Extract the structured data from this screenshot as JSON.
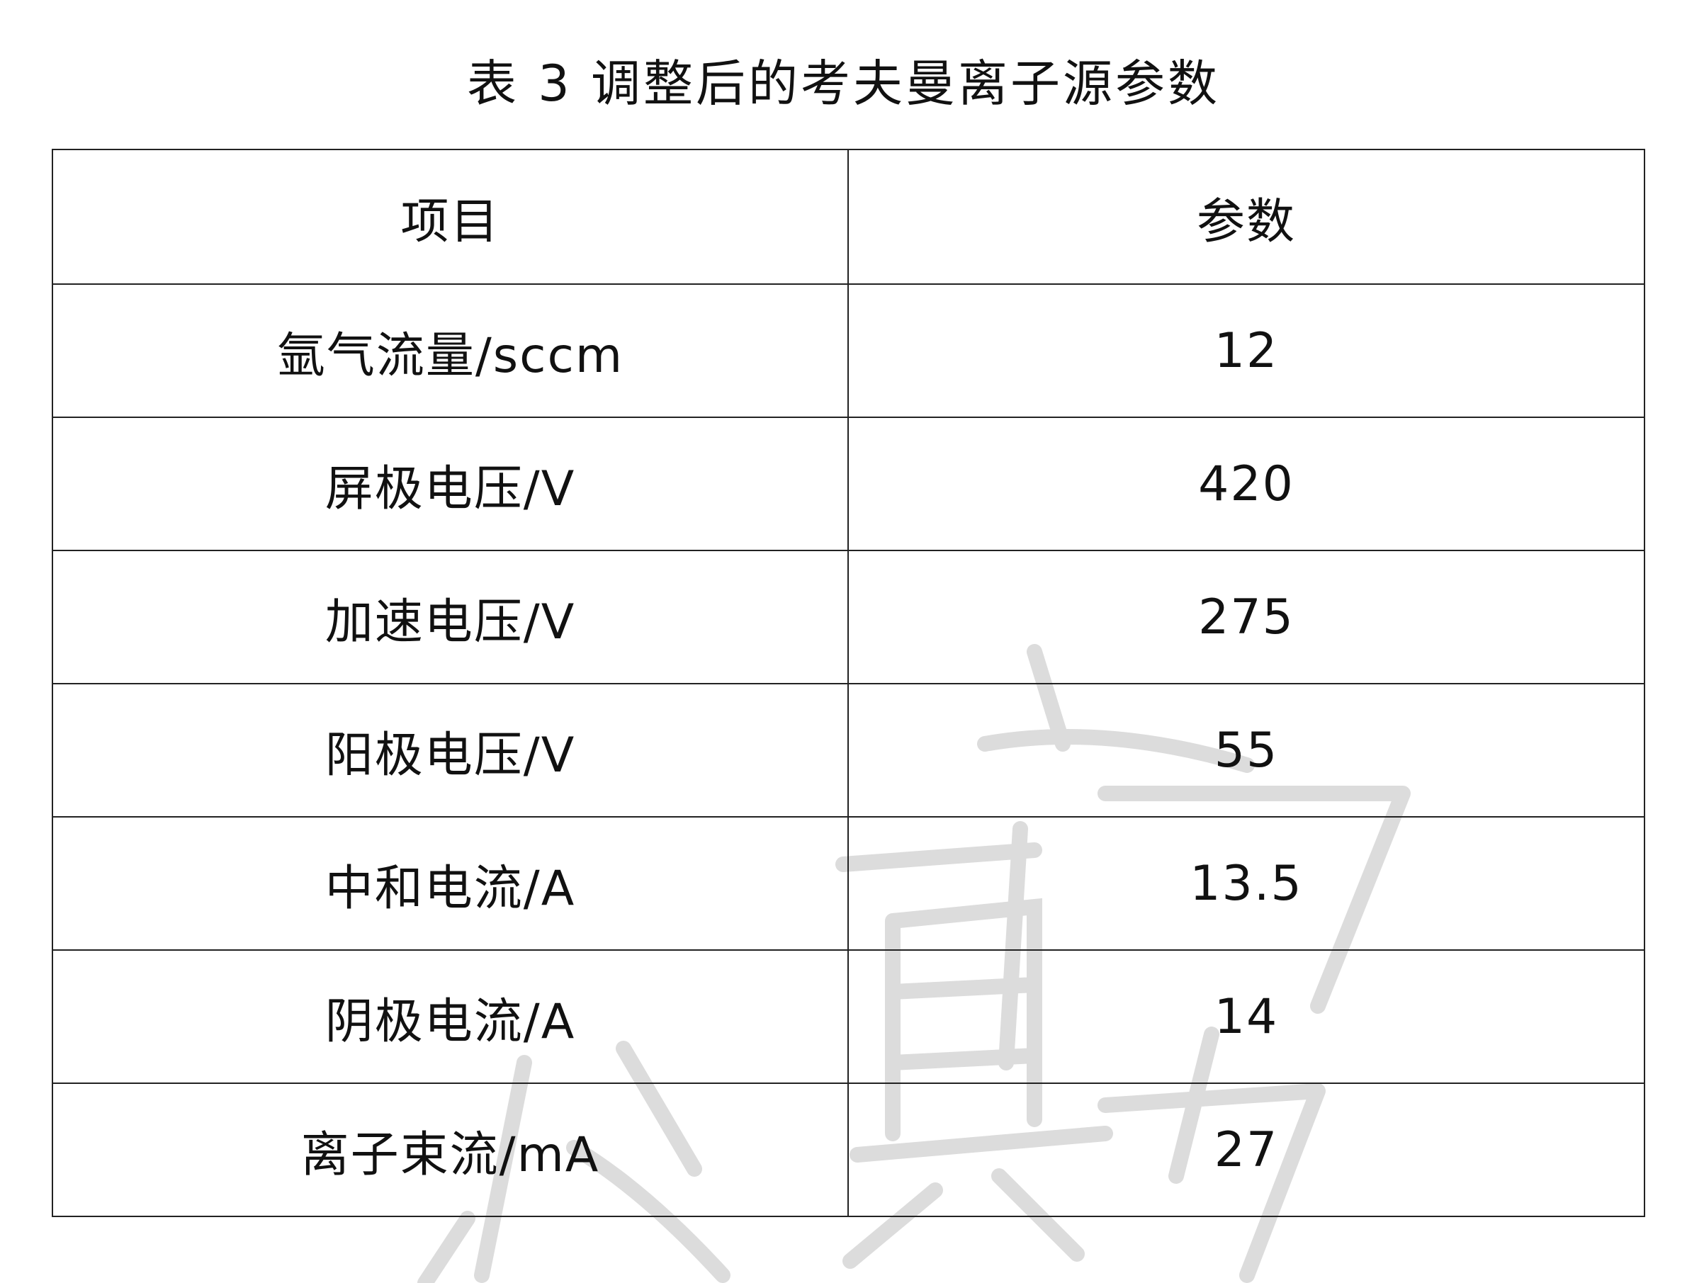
{
  "title": "表 3  调整后的考夫曼离子源参数",
  "table": {
    "headers": [
      "项目",
      "参数"
    ],
    "rows": [
      {
        "item": "氩气流量/sccm",
        "value": "12"
      },
      {
        "item": "屏极电压/V",
        "value": "420"
      },
      {
        "item": "加速电压/V",
        "value": "275"
      },
      {
        "item": "阳极电压/V",
        "value": "55"
      },
      {
        "item": "中和电流/A",
        "value": "13.5"
      },
      {
        "item": "阴极电流/A",
        "value": "14"
      },
      {
        "item": "离子束流/mA",
        "value": "27"
      }
    ]
  },
  "watermark_color": "#d9d9d9"
}
